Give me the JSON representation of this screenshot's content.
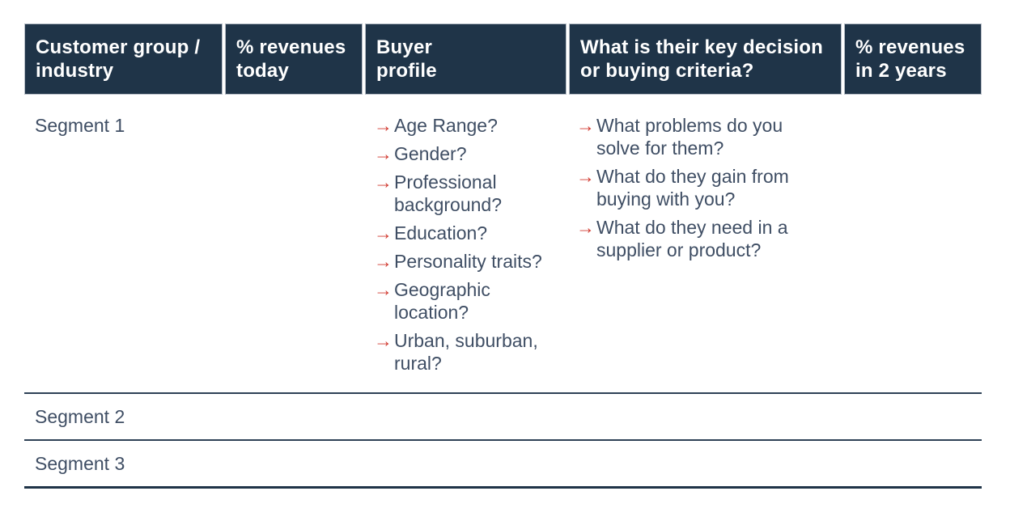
{
  "colors": {
    "header_bg": "#1f3448",
    "header_text": "#ffffff",
    "body_text": "#3f4e64",
    "bullet_arrow": "#d13a30",
    "row_divider": "#2e4156",
    "bottom_border": "#1f3448",
    "header_cell_border": "#b6bdc6"
  },
  "icons": {
    "arrow_bullet": "→"
  },
  "table": {
    "headers": [
      "Customer group /\nindustry",
      "% revenues\ntoday",
      "Buyer\nprofile",
      "What is their key decision\nor buying criteria?",
      "% revenues\nin 2 years"
    ],
    "rows": [
      {
        "segment": "Segment 1",
        "buyer_profile": [
          "Age Range?",
          "Gender?",
          "Professional background?",
          "Education?",
          "Personality traits?",
          "Geographic location?",
          "Urban, suburban, rural?"
        ],
        "decision_criteria": [
          "What problems do you solve for them?",
          "What do they gain from buying with you?",
          "What do they need in a supplier or product?"
        ]
      },
      {
        "segment": "Segment 2"
      },
      {
        "segment": "Segment 3"
      }
    ]
  }
}
